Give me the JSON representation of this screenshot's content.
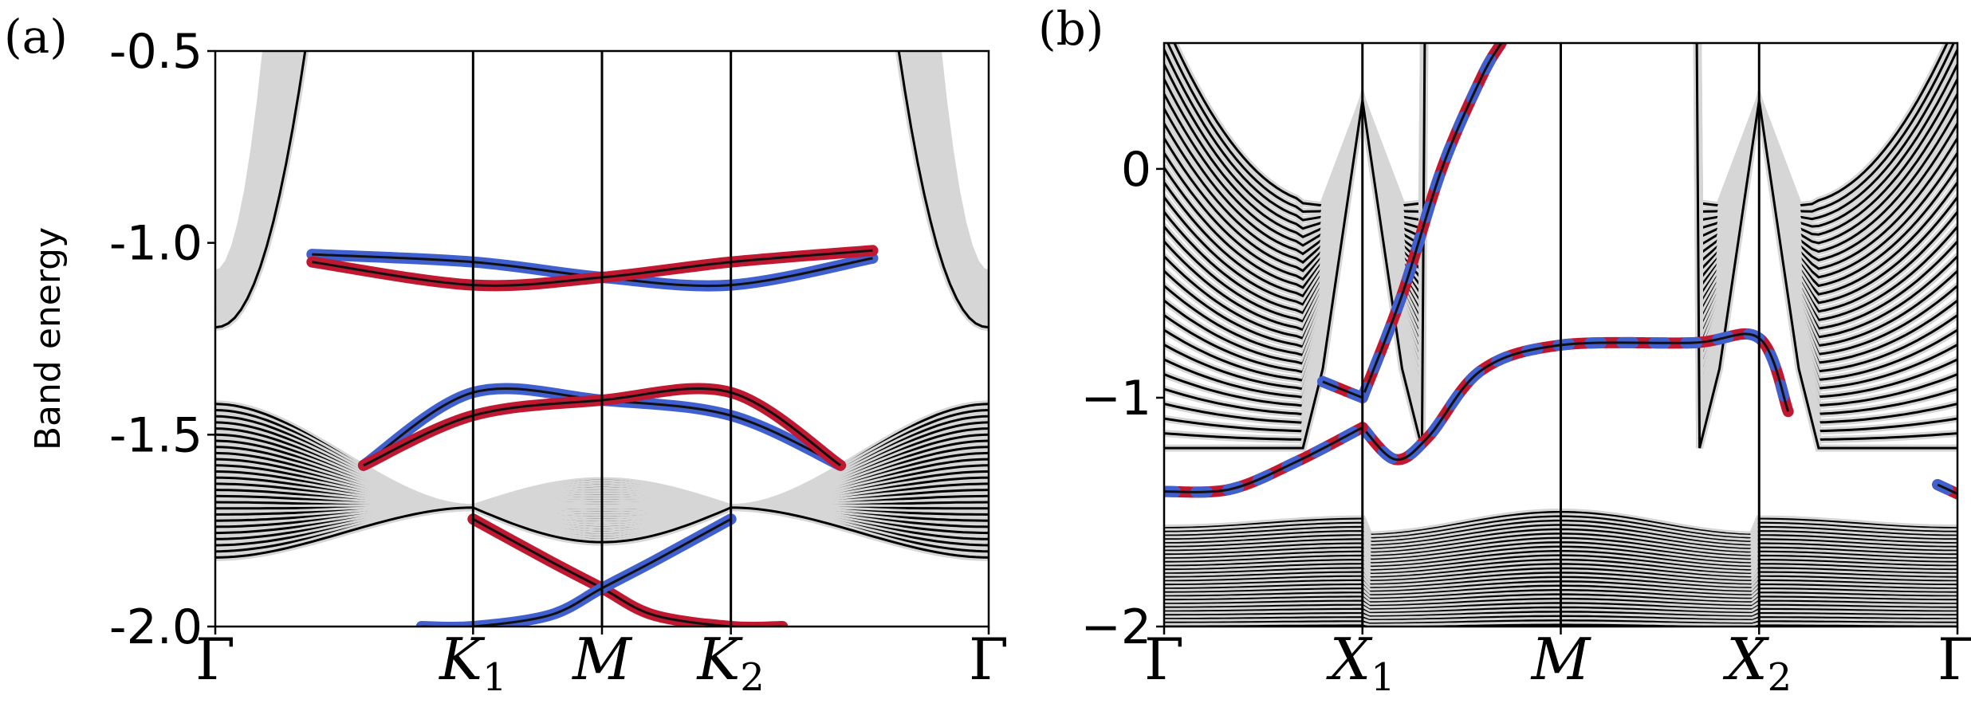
{
  "chart_data": [
    {
      "panel_label": "(a)",
      "type": "line",
      "ylabel": "Band energy",
      "ylim": [
        -2.0,
        -0.5
      ],
      "yticks": [
        -0.5,
        -1.0,
        -1.5,
        -2.0
      ],
      "ytick_labels": [
        "-0.5",
        "-1.0",
        "-1.5",
        "-2.0"
      ],
      "xlim": [
        0,
        6
      ],
      "kpoints": [
        {
          "x": 0,
          "label": "Γ",
          "sub": ""
        },
        {
          "x": 2,
          "label": "K",
          "sub": "1"
        },
        {
          "x": 3,
          "label": "M",
          "sub": ""
        },
        {
          "x": 4,
          "label": "K",
          "sub": "2"
        },
        {
          "x": 6,
          "label": "Γ",
          "sub": ""
        }
      ],
      "vlines": [
        2,
        3,
        4
      ],
      "bulk_bands": {
        "count": 26,
        "color": "#000000",
        "upper_group": {
          "top_at_gamma": [
            -1.08,
            -1.22
          ],
          "energy_at_x1": -0.5,
          "energy_at_x5": -0.5
        },
        "lower_group": {
          "energy_at_gamma": [
            -1.42,
            -1.82
          ],
          "node_k1": -1.69,
          "node_k2": -1.69,
          "m_range": [
            -1.62,
            -1.78
          ]
        }
      },
      "edge_states": [
        {
          "name": "upper-blue-top",
          "color": "#4060d0",
          "x": [
            0.75,
            2,
            3,
            4,
            5.1
          ],
          "y": [
            -1.03,
            -1.05,
            -1.09,
            -1.11,
            -1.04
          ]
        },
        {
          "name": "upper-red-top",
          "color": "#c01830",
          "x": [
            0.75,
            2,
            3,
            4,
            5.1
          ],
          "y": [
            -1.05,
            -1.11,
            -1.09,
            -1.05,
            -1.02
          ]
        },
        {
          "name": "mid-blue",
          "color": "#4060d0",
          "x": [
            1.15,
            2,
            3,
            4,
            4.85
          ],
          "y": [
            -1.58,
            -1.39,
            -1.41,
            -1.45,
            -1.58
          ]
        },
        {
          "name": "mid-red",
          "color": "#c01830",
          "x": [
            1.15,
            2,
            3,
            4,
            4.85
          ],
          "y": [
            -1.58,
            -1.45,
            -1.41,
            -1.39,
            -1.58
          ]
        },
        {
          "name": "low-red",
          "color": "#c01830",
          "x": [
            2,
            2.6,
            3,
            3.4,
            4,
            4.4
          ],
          "y": [
            -1.72,
            -1.83,
            -1.9,
            -1.97,
            -2.0,
            -2.0
          ]
        },
        {
          "name": "low-blue",
          "color": "#4060d0",
          "x": [
            1.6,
            2,
            2.6,
            3,
            3.4,
            4
          ],
          "y": [
            -2.0,
            -2.0,
            -1.97,
            -1.9,
            -1.83,
            -1.72
          ]
        }
      ]
    },
    {
      "panel_label": "(b)",
      "type": "line",
      "ylim": [
        -2.0,
        0.55
      ],
      "yticks": [
        0,
        -1,
        -2
      ],
      "ytick_labels": [
        "0",
        "−1",
        "−2"
      ],
      "xlim": [
        0,
        6
      ],
      "kpoints": [
        {
          "x": 0,
          "label": "Γ",
          "sub": ""
        },
        {
          "x": 1.5,
          "label": "X",
          "sub": "1"
        },
        {
          "x": 3,
          "label": "M",
          "sub": ""
        },
        {
          "x": 4.5,
          "label": "X",
          "sub": "2"
        },
        {
          "x": 6,
          "label": "Γ",
          "sub": ""
        }
      ],
      "vlines": [
        1.5,
        3,
        4.5
      ],
      "bulk_bands": {
        "count": 30,
        "color": "#000000",
        "upper_group": {
          "bottom_at_gamma": -1.22,
          "node_x1": -0.18,
          "node_x2": -0.18
        },
        "lower_group": {
          "top_at_m": -1.6,
          "top_at_x": -1.5,
          "bottom": -2.0
        }
      },
      "edge_states": [
        {
          "name": "steep-dirac",
          "color": "#c01830",
          "alt_color": "#4060d0",
          "x": [
            1.5,
            1.8,
            2.1,
            2.4,
            2.55
          ],
          "y": [
            -1.0,
            -0.55,
            0.0,
            0.4,
            0.55
          ]
        },
        {
          "name": "flat-band",
          "color": "#c01830",
          "alt_color": "#4060d0",
          "x": [
            1.5,
            1.75,
            2.0,
            2.4,
            3.0,
            4.0,
            4.5,
            4.72
          ],
          "y": [
            -1.13,
            -1.27,
            -1.17,
            -0.88,
            -0.77,
            -0.76,
            -0.74,
            -1.06
          ]
        },
        {
          "name": "gamma-left",
          "color": "#c01830",
          "alt_color": "#4060d0",
          "x": [
            0.0,
            0.5,
            1.0,
            1.5
          ],
          "y": [
            -1.41,
            -1.4,
            -1.28,
            -1.13
          ]
        },
        {
          "name": "x1-cross",
          "color": "#c01830",
          "alt_color": "#4060d0",
          "x": [
            1.2,
            1.5
          ],
          "y": [
            -0.93,
            -1.0
          ]
        },
        {
          "name": "gamma-right",
          "color": "#c01830",
          "alt_color": "#4060d0",
          "x": [
            5.85,
            6.0
          ],
          "y": [
            -1.38,
            -1.42
          ]
        }
      ]
    }
  ]
}
